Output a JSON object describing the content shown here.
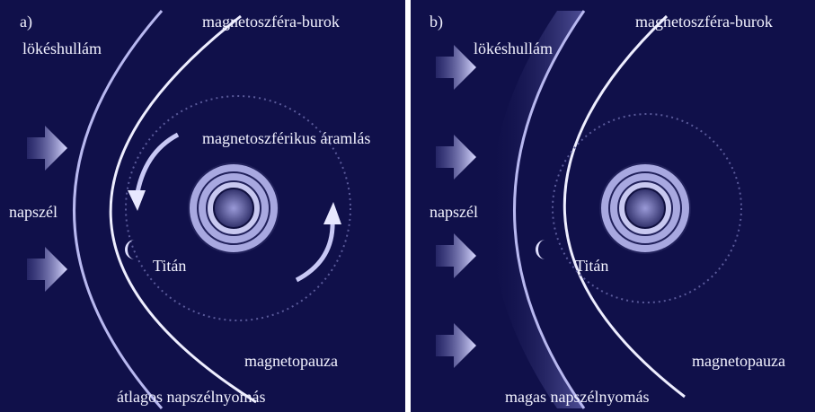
{
  "panels": [
    {
      "label": "a)",
      "shock": "lökéshullám",
      "sheath": "magnetoszféra-burok",
      "flow": "magnetoszférikus áramlás",
      "wind": "napszél",
      "titan": "Titán",
      "pause": "magnetopauza",
      "caption": "átlagos napszélnyomás"
    },
    {
      "label": "b)",
      "shock": "lökéshullám",
      "sheath": "magnetoszféra-burok",
      "wind": "napszél",
      "titan": "Titán",
      "pause": "magnetopauza",
      "caption": "magas napszélnyomás"
    }
  ]
}
